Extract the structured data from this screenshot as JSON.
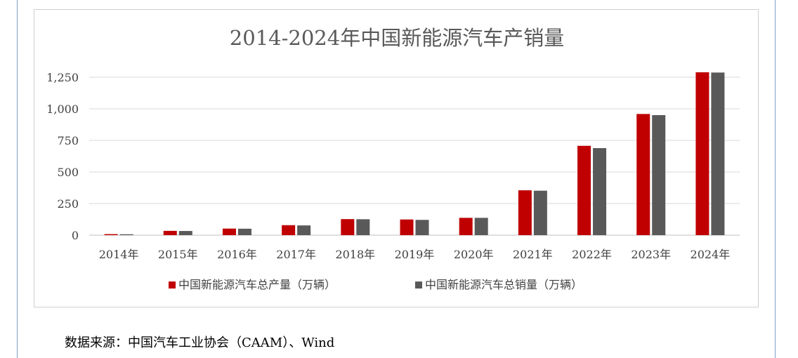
{
  "chart_data": {
    "type": "bar",
    "title": "2014-2024年中国新能源汽车产销量",
    "categories": [
      "2014年",
      "2015年",
      "2016年",
      "2017年",
      "2018年",
      "2019年",
      "2020年",
      "2021年",
      "2022年",
      "2023年",
      "2024年"
    ],
    "series": [
      {
        "name": "中国新能源汽车总产量（万辆）",
        "color": "#c00000",
        "values": [
          8,
          34,
          52,
          79,
          127,
          124,
          137,
          355,
          707,
          959,
          1289
        ]
      },
      {
        "name": "中国新能源汽车总销量（万辆）",
        "color": "#595959",
        "values": [
          7,
          33,
          51,
          77,
          126,
          121,
          137,
          352,
          689,
          950,
          1287
        ]
      }
    ],
    "yticks": [
      "0",
      "250",
      "500",
      "750",
      "1,000",
      "1,250"
    ],
    "ylim": [
      0,
      1350
    ],
    "grid": true,
    "legend": "bottom"
  },
  "source_note": "数据来源：中国汽车工业协会（CAAM）、Wind"
}
